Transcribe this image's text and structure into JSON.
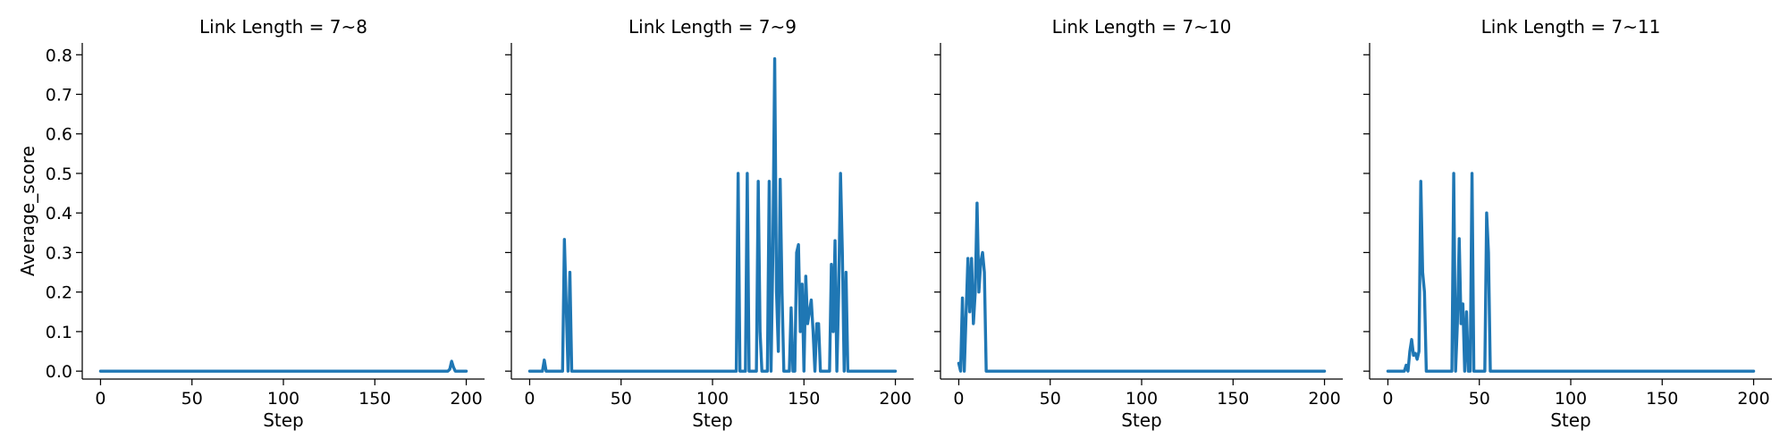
{
  "chart_data": {
    "type": "line",
    "facet_label": "Link Length",
    "ylabel": "Average_score",
    "xlabel": "Step",
    "ylim": [
      -0.02,
      0.83
    ],
    "xlim": [
      -10,
      210
    ],
    "yticks": [
      0.0,
      0.1,
      0.2,
      0.3,
      0.4,
      0.5,
      0.6,
      0.7,
      0.8
    ],
    "xticks": [
      0,
      50,
      100,
      150,
      200
    ],
    "line_color": "#1f77b4",
    "grid": false,
    "shared_y": true,
    "panels": [
      {
        "title": "Link Length = 7~8",
        "points": [
          [
            0,
            0
          ],
          [
            190,
            0
          ],
          [
            191,
            0.005
          ],
          [
            192,
            0.025
          ],
          [
            193,
            0.01
          ],
          [
            194,
            0
          ],
          [
            200,
            0
          ]
        ]
      },
      {
        "title": "Link Length = 7~9",
        "points": [
          [
            0,
            0
          ],
          [
            7,
            0
          ],
          [
            8,
            0.028
          ],
          [
            9,
            0
          ],
          [
            18,
            0
          ],
          [
            19,
            0.333
          ],
          [
            21,
            0
          ],
          [
            22,
            0.25
          ],
          [
            23,
            0
          ],
          [
            113,
            0
          ],
          [
            114,
            0.5
          ],
          [
            115,
            0
          ],
          [
            118,
            0
          ],
          [
            119,
            0.5
          ],
          [
            120,
            0
          ],
          [
            124,
            0
          ],
          [
            125,
            0.48
          ],
          [
            126,
            0.1
          ],
          [
            127,
            0
          ],
          [
            130,
            0
          ],
          [
            131,
            0.48
          ],
          [
            132,
            0
          ],
          [
            133,
            0.3
          ],
          [
            134,
            0.79
          ],
          [
            135,
            0.2
          ],
          [
            136,
            0.05
          ],
          [
            137,
            0.485
          ],
          [
            138,
            0.2
          ],
          [
            139,
            0
          ],
          [
            142,
            0
          ],
          [
            143,
            0.16
          ],
          [
            144,
            0
          ],
          [
            145,
            0
          ],
          [
            146,
            0.3
          ],
          [
            147,
            0.32
          ],
          [
            148,
            0.1
          ],
          [
            149,
            0.22
          ],
          [
            150,
            0
          ],
          [
            151,
            0.24
          ],
          [
            152,
            0.12
          ],
          [
            153,
            0.15
          ],
          [
            154,
            0.18
          ],
          [
            155,
            0.1
          ],
          [
            156,
            0
          ],
          [
            157,
            0.12
          ],
          [
            158,
            0.12
          ],
          [
            159,
            0
          ],
          [
            164,
            0
          ],
          [
            165,
            0.27
          ],
          [
            166,
            0.1
          ],
          [
            167,
            0.33
          ],
          [
            168,
            0
          ],
          [
            169,
            0.2
          ],
          [
            170,
            0.5
          ],
          [
            171,
            0.3
          ],
          [
            172,
            0
          ],
          [
            173,
            0.25
          ],
          [
            174,
            0
          ],
          [
            200,
            0
          ]
        ]
      },
      {
        "title": "Link Length = 7~10",
        "points": [
          [
            0,
            0.02
          ],
          [
            1,
            0
          ],
          [
            2,
            0.185
          ],
          [
            3,
            0
          ],
          [
            5,
            0.285
          ],
          [
            6,
            0.15
          ],
          [
            7,
            0.285
          ],
          [
            8,
            0.12
          ],
          [
            9,
            0.2
          ],
          [
            10,
            0.425
          ],
          [
            11,
            0.2
          ],
          [
            12,
            0.275
          ],
          [
            13,
            0.3
          ],
          [
            14,
            0.25
          ],
          [
            15,
            0
          ],
          [
            200,
            0
          ]
        ]
      },
      {
        "title": "Link Length = 7~11",
        "points": [
          [
            0,
            0
          ],
          [
            9,
            0
          ],
          [
            10,
            0.015
          ],
          [
            11,
            0
          ],
          [
            12,
            0.05
          ],
          [
            13,
            0.08
          ],
          [
            14,
            0.04
          ],
          [
            15,
            0.045
          ],
          [
            16,
            0.03
          ],
          [
            17,
            0.05
          ],
          [
            18,
            0.48
          ],
          [
            19,
            0.25
          ],
          [
            20,
            0.2
          ],
          [
            21,
            0
          ],
          [
            35,
            0
          ],
          [
            36,
            0.5
          ],
          [
            37,
            0
          ],
          [
            38,
            0.12
          ],
          [
            39,
            0.335
          ],
          [
            40,
            0.12
          ],
          [
            41,
            0.17
          ],
          [
            42,
            0
          ],
          [
            43,
            0.15
          ],
          [
            44,
            0
          ],
          [
            45,
            0
          ],
          [
            46,
            0.5
          ],
          [
            47,
            0
          ],
          [
            53,
            0
          ],
          [
            54,
            0.4
          ],
          [
            55,
            0.3
          ],
          [
            56,
            0
          ],
          [
            200,
            0
          ]
        ]
      }
    ]
  }
}
